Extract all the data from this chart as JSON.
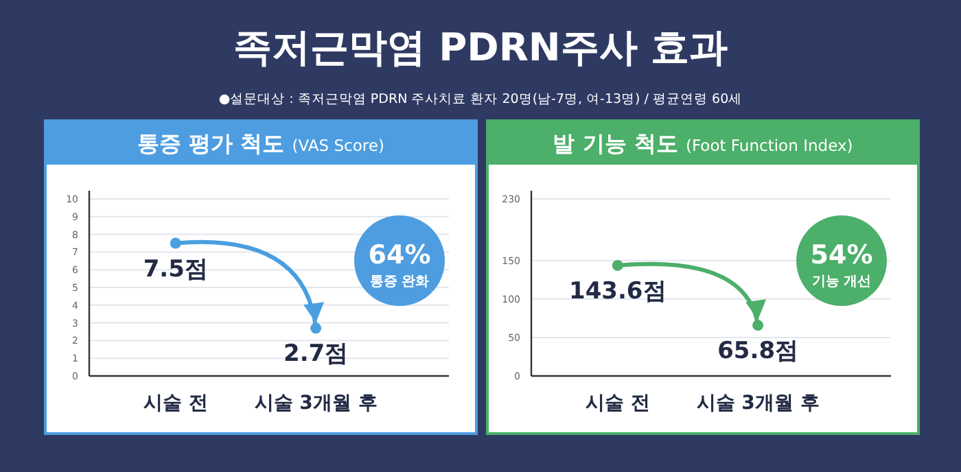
{
  "chart_data": [
    {
      "type": "line",
      "title": "통증 평가 척도 $_{(VAS Score)}$",
      "categories": [
        "시술 전",
        "시술 3개월 후"
      ],
      "series": [
        {
          "color": "#4a9fe0",
          "values": [
            7.5,
            2.7
          ],
          "value_labels": [
            "7.5점",
            "2.7점"
          ]
        }
      ],
      "ylim": [
        0,
        10
      ],
      "yticks": [
        0,
        1,
        2,
        3,
        4,
        5,
        6,
        7,
        8,
        9,
        10
      ],
      "grid": "y",
      "marker": "circle",
      "annotations": [
        "족저근막염 PDRN주사 효과",
        "●설문대상 : 족저근막염 PDRN 주사치료 환자 20명(남-7명, 여-13명) / 평균연령 60세",
        "64%",
        "통증 완화"
      ]
    },
    {
      "type": "line",
      "title": "발 기능 척도 $_{(Foot Function Index)}$",
      "categories": [
        "시술 전",
        "시술 3개월 후"
      ],
      "series": [
        {
          "color": "#4caf6a",
          "values": [
            143.6,
            65.8
          ],
          "value_labels": [
            "143.6점",
            "65.8점"
          ]
        }
      ],
      "ylim": [
        0,
        230
      ],
      "yticks": [
        0,
        50,
        100,
        150,
        230
      ],
      "grid": "y",
      "marker": "circle",
      "annotations": [
        "54%",
        "기능 개선"
      ]
    }
  ]
}
